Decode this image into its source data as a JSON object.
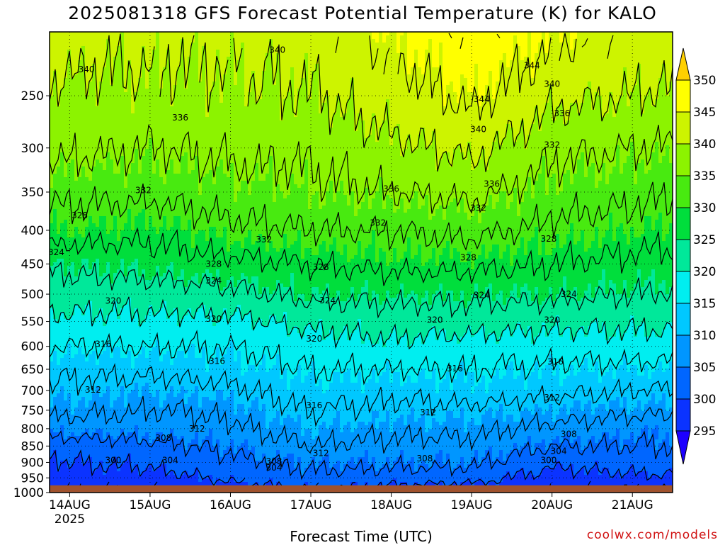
{
  "title": "2025081318 GFS Forecast Potential Temperature (K) for KALO",
  "xlabel": "Forecast Time (UTC)",
  "credit": "coolwx.com/models",
  "chart_data": {
    "type": "heatmap",
    "title": "2025081318 GFS Forecast Potential Temperature (K) for KALO",
    "xlabel": "Forecast Time (UTC)",
    "ylabel": "",
    "x_ticks": [
      "14AUG",
      "15AUG",
      "16AUG",
      "17AUG",
      "18AUG",
      "19AUG",
      "20AUG",
      "21AUG"
    ],
    "x_tick_sub": "2025",
    "x_range_hours": [
      -6,
      180
    ],
    "x_tick_hours": [
      0,
      24,
      48,
      72,
      96,
      120,
      144,
      168
    ],
    "y_ticks": [
      250,
      300,
      350,
      400,
      450,
      500,
      550,
      600,
      650,
      700,
      750,
      800,
      850,
      900,
      950,
      1000
    ],
    "y_range_hpa": [
      200,
      1000
    ],
    "y_scale": "log",
    "y_inverted": true,
    "colorbar_levels": [
      295,
      300,
      305,
      310,
      315,
      320,
      325,
      330,
      335,
      340,
      345,
      350
    ],
    "colorbar_colors": [
      "#1d00ff",
      "#0b33ff",
      "#0066ff",
      "#0096ff",
      "#00c8ff",
      "#00eef0",
      "#00e89a",
      "#00de3c",
      "#48ea10",
      "#8cf300",
      "#cdf400",
      "#ffff00",
      "#ffd000"
    ],
    "ground_color": "#a0522d",
    "ground_pressure_hpa": 975,
    "contour_interval": 4,
    "grid": "dotted",
    "colorbar_position": "right",
    "level_profile_hpa": [
      200,
      250,
      300,
      350,
      400,
      450,
      500,
      550,
      600,
      650,
      700,
      750,
      800,
      850,
      900,
      950,
      975
    ],
    "series": [
      {
        "name": "14AUG",
        "hour": 0,
        "values": [
          342,
          339,
          337,
          333,
          330,
          325,
          322,
          319,
          316,
          313,
          311,
          309,
          306,
          302,
          300,
          298,
          297
        ]
      },
      {
        "name": "15AUG",
        "hour": 24,
        "values": [
          341,
          339,
          336,
          333,
          329,
          326,
          322,
          319,
          316,
          313,
          310,
          308,
          306,
          303,
          301,
          298,
          297
        ]
      },
      {
        "name": "16AUG",
        "hour": 48,
        "values": [
          341,
          339,
          337,
          334,
          331,
          327,
          323,
          319,
          316,
          314,
          311,
          309,
          307,
          305,
          303,
          301,
          299
        ]
      },
      {
        "name": "17AUG",
        "hour": 72,
        "values": [
          342,
          340,
          337,
          335,
          332,
          328,
          325,
          321,
          318,
          316,
          314,
          312,
          310,
          308,
          305,
          303,
          301
        ]
      },
      {
        "name": "18AUG",
        "hour": 96,
        "values": [
          345,
          342,
          339,
          336,
          332,
          329,
          325,
          322,
          319,
          316,
          313,
          311,
          309,
          307,
          305,
          302,
          300
        ]
      },
      {
        "name": "19AUG",
        "hour": 120,
        "values": [
          348,
          345,
          341,
          337,
          333,
          329,
          325,
          322,
          318,
          316,
          314,
          311,
          309,
          307,
          305,
          302,
          299
        ]
      },
      {
        "name": "20AUG",
        "hour": 144,
        "values": [
          345,
          341,
          337,
          334,
          331,
          328,
          325,
          321,
          318,
          315,
          313,
          310,
          307,
          304,
          301,
          298,
          297
        ]
      },
      {
        "name": "21AUG",
        "hour": 168,
        "values": [
          343,
          340,
          336,
          333,
          330,
          327,
          324,
          321,
          318,
          315,
          312,
          309,
          306,
          304,
          302,
          299,
          297
        ]
      }
    ],
    "contour_labels": [
      {
        "value": "340",
        "hour": 62,
        "hpa": 213
      },
      {
        "value": "340",
        "hour": 5,
        "hpa": 228
      },
      {
        "value": "344",
        "hour": 138,
        "hpa": 225
      },
      {
        "value": "340",
        "hour": 144,
        "hpa": 240
      },
      {
        "value": "344",
        "hour": 123,
        "hpa": 253
      },
      {
        "value": "336",
        "hour": 33,
        "hpa": 270
      },
      {
        "value": "336",
        "hour": 147,
        "hpa": 266
      },
      {
        "value": "340",
        "hour": 122,
        "hpa": 281
      },
      {
        "value": "332",
        "hour": 144,
        "hpa": 297
      },
      {
        "value": "336",
        "hour": 96,
        "hpa": 346
      },
      {
        "value": "336",
        "hour": 126,
        "hpa": 340
      },
      {
        "value": "332",
        "hour": 22,
        "hpa": 348
      },
      {
        "value": "332",
        "hour": 122,
        "hpa": 370
      },
      {
        "value": "332",
        "hour": 92,
        "hpa": 390
      },
      {
        "value": "328",
        "hour": 3,
        "hpa": 380
      },
      {
        "value": "332",
        "hour": 58,
        "hpa": 413
      },
      {
        "value": "328",
        "hour": 143,
        "hpa": 412
      },
      {
        "value": "324",
        "hour": -4,
        "hpa": 432
      },
      {
        "value": "328",
        "hour": 43,
        "hpa": 450
      },
      {
        "value": "328",
        "hour": 119,
        "hpa": 440
      },
      {
        "value": "328",
        "hour": 75,
        "hpa": 455
      },
      {
        "value": "324",
        "hour": 43,
        "hpa": 477
      },
      {
        "value": "324",
        "hour": 77,
        "hpa": 511
      },
      {
        "value": "324",
        "hour": 123,
        "hpa": 502
      },
      {
        "value": "324",
        "hour": 149,
        "hpa": 500
      },
      {
        "value": "320",
        "hour": 13,
        "hpa": 512
      },
      {
        "value": "320",
        "hour": 43,
        "hpa": 545
      },
      {
        "value": "320",
        "hour": 109,
        "hpa": 547
      },
      {
        "value": "320",
        "hour": 144,
        "hpa": 547
      },
      {
        "value": "320",
        "hour": 73,
        "hpa": 584
      },
      {
        "value": "316",
        "hour": 10,
        "hpa": 595
      },
      {
        "value": "316",
        "hour": 44,
        "hpa": 632
      },
      {
        "value": "316",
        "hour": 115,
        "hpa": 648
      },
      {
        "value": "316",
        "hour": 145,
        "hpa": 633
      },
      {
        "value": "312",
        "hour": 7,
        "hpa": 698
      },
      {
        "value": "312",
        "hour": 144,
        "hpa": 718
      },
      {
        "value": "316",
        "hour": 73,
        "hpa": 737
      },
      {
        "value": "312",
        "hour": 107,
        "hpa": 756
      },
      {
        "value": "312",
        "hour": 38,
        "hpa": 800
      },
      {
        "value": "308",
        "hour": 28,
        "hpa": 826
      },
      {
        "value": "308",
        "hour": 149,
        "hpa": 815
      },
      {
        "value": "304",
        "hour": 146,
        "hpa": 865
      },
      {
        "value": "312",
        "hour": 75,
        "hpa": 872
      },
      {
        "value": "308",
        "hour": 106,
        "hpa": 888
      },
      {
        "value": "300",
        "hour": 13,
        "hpa": 893
      },
      {
        "value": "304",
        "hour": 30,
        "hpa": 893
      },
      {
        "value": "300",
        "hour": 143,
        "hpa": 893
      },
      {
        "value": "308",
        "hour": 61,
        "hpa": 897
      },
      {
        "value": "304",
        "hour": 61,
        "hpa": 917
      }
    ]
  }
}
